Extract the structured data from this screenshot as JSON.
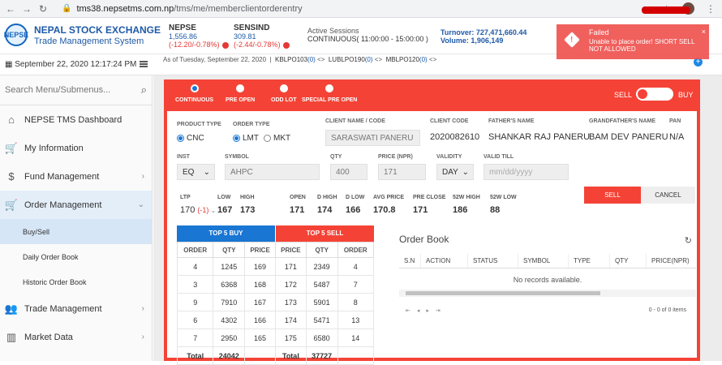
{
  "browser": {
    "url_host": "tms38.nepsetms.com.np",
    "url_path": "/tms/me/memberclientorderentry"
  },
  "header": {
    "logo_text": "NEPSE",
    "brand_title": "NEPAL STOCK EXCHANGE",
    "brand_subtitle": "Trade Management System",
    "indices": [
      {
        "name": "NEPSE",
        "value": "1,556.86",
        "change": "(-12.20/-0.78%)"
      },
      {
        "name": "SENSIND",
        "value": "309.81",
        "change": "(-2.44/-0.78%)"
      }
    ],
    "session_label": "Active Sessions",
    "session_value": "CONTINUOUS( 11:00:00 - 15:00:00 )",
    "turnover": "Turnover: 727,471,660.44",
    "volume": "Volume: 1,906,149"
  },
  "toast": {
    "title": "Failed",
    "message": "Unable to place order! SHORT SELL NOT ALLOWED",
    "close": "×"
  },
  "subbar": {
    "datetime": "September 22, 2020 12:17:24 PM",
    "asof": "As of Tuesday, September 22, 2020",
    "tickers": [
      "KBLPO103",
      "LUBLPO190",
      "MBLPO120"
    ],
    "ticker_count": "(0)",
    "plus": "+"
  },
  "sidebar": {
    "search_placeholder": "Search Menu/Submenus...",
    "items": [
      {
        "label": "NEPSE TMS Dashboard"
      },
      {
        "label": "My Information"
      },
      {
        "label": "Fund Management"
      },
      {
        "label": "Order Management"
      },
      {
        "label": "Trade Management"
      },
      {
        "label": "Market Data"
      }
    ],
    "subitems": [
      "Buy/Sell",
      "Daily Order Book",
      "Historic Order Book"
    ]
  },
  "order": {
    "modes": [
      "CONTINUOUS",
      "PRE OPEN",
      "ODD LOT",
      "SPECIAL PRE OPEN"
    ],
    "sell": "SELL",
    "buy": "BUY",
    "labels": {
      "product_type": "PRODUCT TYPE",
      "order_type": "ORDER TYPE",
      "client_name": "CLIENT NAME / CODE",
      "client_code": "CLIENT CODE",
      "fathers_name": "FATHER'S NAME",
      "grandfathers_name": "GRANDFATHER'S NAME",
      "pan": "PAN",
      "inst": "INST",
      "symbol": "SYMBOL",
      "qty": "QTY",
      "price": "PRICE (NPR)",
      "validity": "VALIDITY",
      "valid_till": "VALID TILL"
    },
    "product_cnc": "CNC",
    "order_lmt": "LMT",
    "order_mkt": "MKT",
    "client_name": "SARASWATI PANERU",
    "client_code": "2020082610",
    "fathers_name": "SHANKAR RAJ PANERU",
    "grandfathers_name": "BAM DEV PANERU",
    "pan": "N/A",
    "inst": "EQ",
    "symbol": "AHPC",
    "qty": "400",
    "price": "171",
    "validity": "DAY",
    "valid_till_placeholder": "mm/dd/yyyy",
    "stats": [
      {
        "label": "LTP",
        "value": "170",
        "sub": "(-1)"
      },
      {
        "label": "LOW",
        "value": "167"
      },
      {
        "label": "HIGH",
        "value": "173"
      },
      {
        "label": "OPEN",
        "value": "171"
      },
      {
        "label": "D HIGH",
        "value": "174"
      },
      {
        "label": "D LOW",
        "value": "166"
      },
      {
        "label": "AVG PRICE",
        "value": "170.8"
      },
      {
        "label": "PRE CLOSE",
        "value": "171"
      },
      {
        "label": "52W HIGH",
        "value": "186"
      },
      {
        "label": "52W LOW",
        "value": "88"
      }
    ],
    "sell_button": "SELL",
    "cancel_button": "CANCEL"
  },
  "top5": {
    "buy_title": "TOP 5 BUY",
    "sell_title": "TOP 5 SELL",
    "buy_color": "#1976d2",
    "sell_color": "#f44336",
    "headers": [
      "ORDER",
      "QTY",
      "PRICE",
      "PRICE",
      "QTY",
      "ORDER"
    ],
    "rows": [
      [
        "4",
        "1245",
        "169",
        "171",
        "2349",
        "4"
      ],
      [
        "3",
        "6368",
        "168",
        "172",
        "5487",
        "7"
      ],
      [
        "9",
        "7910",
        "167",
        "173",
        "5901",
        "8"
      ],
      [
        "6",
        "4302",
        "166",
        "174",
        "5471",
        "13"
      ],
      [
        "7",
        "2950",
        "165",
        "175",
        "6580",
        "14"
      ]
    ],
    "total_label": "Total",
    "buy_total": "24042",
    "sell_total": "37727"
  },
  "orderbook": {
    "title": "Order Book",
    "headers": [
      "S.N",
      "ACTION",
      "STATUS",
      "SYMBOL",
      "TYPE",
      "QTY",
      "PRICE(NPR)"
    ],
    "empty": "No records available.",
    "pager": "0 - 0 of 0 items"
  }
}
